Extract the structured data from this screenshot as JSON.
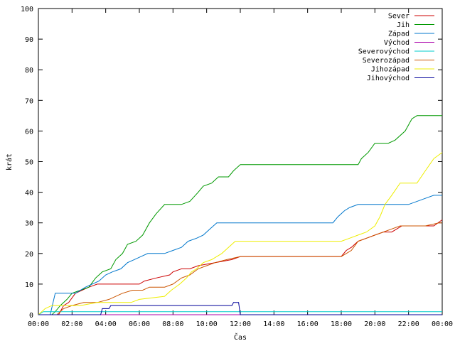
{
  "chart_data": {
    "type": "line",
    "title": "",
    "xlabel": "Čas",
    "ylabel": "krát",
    "xlim": [
      "00:00",
      "24:00"
    ],
    "ylim": [
      0,
      100
    ],
    "x_ticks": [
      "00:00",
      "02:00",
      "04:00",
      "06:00",
      "08:00",
      "10:00",
      "12:00",
      "14:00",
      "16:00",
      "18:00",
      "20:00",
      "22:00",
      "00:00"
    ],
    "y_ticks": [
      0,
      10,
      20,
      30,
      40,
      50,
      60,
      70,
      80,
      90,
      100
    ],
    "grid": false,
    "legend_position": "top-right",
    "series": [
      {
        "name": "Sever",
        "color": "#cc0000",
        "points": [
          [
            0,
            0
          ],
          [
            1.2,
            0
          ],
          [
            1.5,
            3
          ],
          [
            1.8,
            4
          ],
          [
            2.2,
            7
          ],
          [
            2.6,
            8
          ],
          [
            3.0,
            9
          ],
          [
            3.5,
            10
          ],
          [
            4.0,
            10
          ],
          [
            6.0,
            10
          ],
          [
            6.3,
            11
          ],
          [
            7.0,
            12
          ],
          [
            7.8,
            13
          ],
          [
            8.0,
            14
          ],
          [
            8.5,
            15
          ],
          [
            9.0,
            15
          ],
          [
            9.5,
            16
          ],
          [
            10.5,
            17
          ],
          [
            11.5,
            18
          ],
          [
            12.0,
            19
          ],
          [
            18.0,
            19
          ],
          [
            18.3,
            21
          ],
          [
            18.6,
            22
          ],
          [
            19.0,
            24
          ],
          [
            19.5,
            25
          ],
          [
            20.0,
            26
          ],
          [
            20.5,
            27
          ],
          [
            21.0,
            27
          ],
          [
            21.3,
            28
          ],
          [
            21.6,
            29
          ],
          [
            22.0,
            29
          ],
          [
            23.5,
            29
          ],
          [
            24.0,
            31
          ]
        ]
      },
      {
        "name": "Jih",
        "color": "#009900",
        "points": [
          [
            0,
            0
          ],
          [
            0.8,
            0
          ],
          [
            1.0,
            1
          ],
          [
            1.3,
            3
          ],
          [
            1.7,
            5
          ],
          [
            2.0,
            7
          ],
          [
            2.5,
            8
          ],
          [
            3.0,
            9
          ],
          [
            3.4,
            12
          ],
          [
            3.8,
            14
          ],
          [
            4.3,
            15
          ],
          [
            4.6,
            18
          ],
          [
            5.0,
            20
          ],
          [
            5.3,
            23
          ],
          [
            5.8,
            24
          ],
          [
            6.2,
            26
          ],
          [
            6.6,
            30
          ],
          [
            7.0,
            33
          ],
          [
            7.5,
            36
          ],
          [
            8.5,
            36
          ],
          [
            9.0,
            37
          ],
          [
            9.5,
            40
          ],
          [
            9.8,
            42
          ],
          [
            10.3,
            43
          ],
          [
            10.7,
            45
          ],
          [
            11.3,
            45
          ],
          [
            11.6,
            47
          ],
          [
            12.0,
            49
          ],
          [
            19.0,
            49
          ],
          [
            19.2,
            51
          ],
          [
            19.6,
            53
          ],
          [
            20.0,
            56
          ],
          [
            20.8,
            56
          ],
          [
            21.2,
            57
          ],
          [
            21.8,
            60
          ],
          [
            22.2,
            64
          ],
          [
            22.5,
            65
          ],
          [
            24.0,
            65
          ]
        ]
      },
      {
        "name": "Západ",
        "color": "#0077cc",
        "points": [
          [
            0,
            0
          ],
          [
            0.7,
            0
          ],
          [
            1.0,
            7
          ],
          [
            1.6,
            7
          ],
          [
            2.2,
            7
          ],
          [
            2.8,
            9
          ],
          [
            3.2,
            10
          ],
          [
            3.6,
            11
          ],
          [
            4.0,
            13
          ],
          [
            4.4,
            14
          ],
          [
            4.9,
            15
          ],
          [
            5.3,
            17
          ],
          [
            5.7,
            18
          ],
          [
            6.1,
            19
          ],
          [
            6.5,
            20
          ],
          [
            7.5,
            20
          ],
          [
            8.0,
            21
          ],
          [
            8.5,
            22
          ],
          [
            8.9,
            24
          ],
          [
            9.4,
            25
          ],
          [
            9.8,
            26
          ],
          [
            10.2,
            28
          ],
          [
            10.6,
            30
          ],
          [
            12.0,
            30
          ],
          [
            17.5,
            30
          ],
          [
            17.8,
            32
          ],
          [
            18.2,
            34
          ],
          [
            18.5,
            35
          ],
          [
            19.0,
            36
          ],
          [
            22.0,
            36
          ],
          [
            23.0,
            38
          ],
          [
            23.5,
            39
          ],
          [
            24.0,
            39
          ]
        ]
      },
      {
        "name": "Východ",
        "color": "#aa00aa",
        "points": [
          [
            0,
            0
          ],
          [
            24.0,
            0
          ]
        ]
      },
      {
        "name": "Severovýchod",
        "color": "#00cccc",
        "points": [
          [
            0,
            0
          ],
          [
            0.3,
            1
          ],
          [
            0.6,
            1
          ],
          [
            0.9,
            1
          ],
          [
            4.0,
            1
          ],
          [
            11.8,
            1
          ],
          [
            12.0,
            1
          ],
          [
            24.0,
            1
          ]
        ]
      },
      {
        "name": "Severozápad",
        "color": "#cc5500",
        "points": [
          [
            0,
            0
          ],
          [
            1.1,
            0
          ],
          [
            1.5,
            2
          ],
          [
            2.0,
            3
          ],
          [
            2.7,
            4
          ],
          [
            3.5,
            4
          ],
          [
            4.2,
            5
          ],
          [
            5.0,
            7
          ],
          [
            5.6,
            8
          ],
          [
            6.2,
            8
          ],
          [
            6.6,
            9
          ],
          [
            7.5,
            9
          ],
          [
            8.0,
            10
          ],
          [
            8.5,
            12
          ],
          [
            9.0,
            13
          ],
          [
            9.5,
            15
          ],
          [
            10.0,
            16
          ],
          [
            10.5,
            17
          ],
          [
            11.2,
            18
          ],
          [
            12.0,
            19
          ],
          [
            18.0,
            19
          ],
          [
            18.6,
            21
          ],
          [
            19.0,
            24
          ],
          [
            19.5,
            25
          ],
          [
            20.5,
            27
          ],
          [
            21.0,
            28
          ],
          [
            21.5,
            29
          ],
          [
            22.5,
            29
          ],
          [
            23.0,
            29
          ],
          [
            23.8,
            30
          ],
          [
            24.0,
            30
          ]
        ]
      },
      {
        "name": "Jihozápad",
        "color": "#eeee00",
        "points": [
          [
            0,
            0
          ],
          [
            0.4,
            2
          ],
          [
            0.8,
            3
          ],
          [
            2.5,
            3
          ],
          [
            3.5,
            4
          ],
          [
            5.5,
            4
          ],
          [
            6.0,
            5
          ],
          [
            7.5,
            6
          ],
          [
            7.9,
            8
          ],
          [
            8.4,
            10
          ],
          [
            8.8,
            12
          ],
          [
            9.1,
            14
          ],
          [
            9.4,
            15
          ],
          [
            9.8,
            17
          ],
          [
            10.3,
            18
          ],
          [
            10.9,
            20
          ],
          [
            11.3,
            22
          ],
          [
            11.7,
            24
          ],
          [
            12.0,
            24
          ],
          [
            18.0,
            24
          ],
          [
            18.5,
            25
          ],
          [
            19.0,
            26
          ],
          [
            19.5,
            27
          ],
          [
            20.0,
            29
          ],
          [
            20.3,
            32
          ],
          [
            20.6,
            36
          ],
          [
            21.0,
            39
          ],
          [
            21.5,
            43
          ],
          [
            22.5,
            43
          ],
          [
            23.0,
            47
          ],
          [
            23.5,
            51
          ],
          [
            24.0,
            53
          ]
        ]
      },
      {
        "name": "Jihovýchod",
        "color": "#000099",
        "points": [
          [
            0,
            0
          ],
          [
            3.7,
            0
          ],
          [
            3.8,
            2
          ],
          [
            4.2,
            2
          ],
          [
            4.3,
            3
          ],
          [
            11.5,
            3
          ],
          [
            11.6,
            4
          ],
          [
            11.9,
            4
          ],
          [
            12.0,
            0
          ],
          [
            24.0,
            0
          ]
        ]
      }
    ]
  }
}
